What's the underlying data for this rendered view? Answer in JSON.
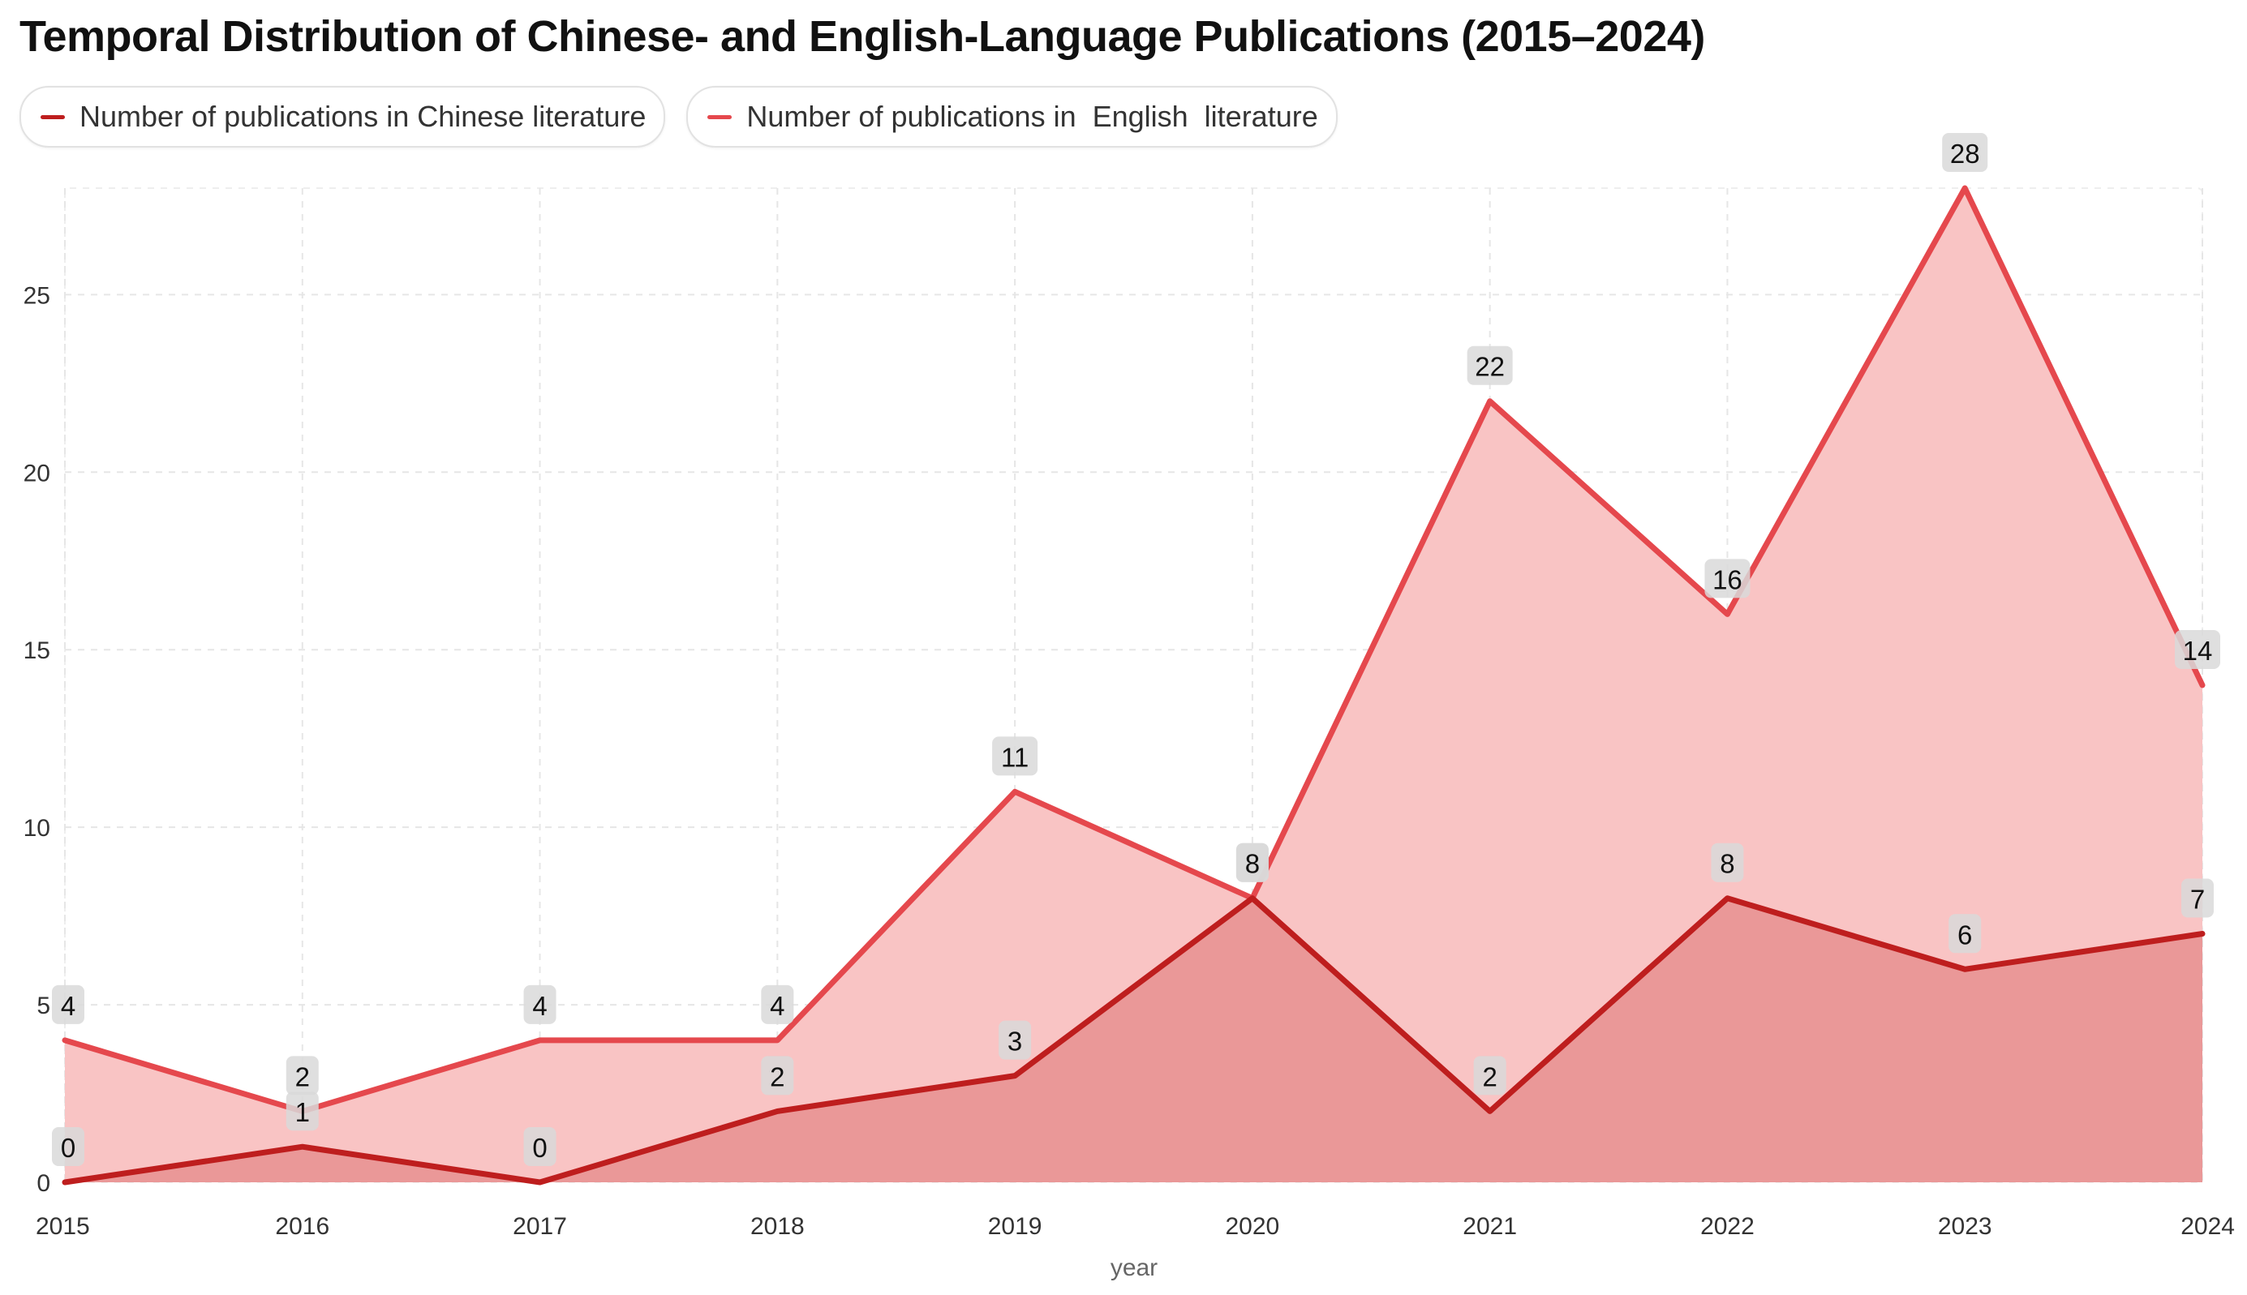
{
  "chart_data": {
    "type": "area",
    "title": "Temporal Distribution of Chinese- and English-Language Publications (2015–2024)",
    "xlabel": "year",
    "ylabel": "",
    "x": [
      "2015",
      "2016",
      "2017",
      "2018",
      "2019",
      "2020",
      "2021",
      "2022",
      "2023",
      "2024"
    ],
    "ylim": [
      0,
      28
    ],
    "yticks": [
      0,
      5,
      10,
      15,
      20,
      25
    ],
    "grid": true,
    "legend_position": "top-left",
    "series": [
      {
        "name": "Number of publications in English  literature",
        "values": [
          4,
          2,
          4,
          4,
          11,
          8,
          22,
          16,
          28,
          14
        ],
        "line_color": "#e5484d",
        "fill_color": "#f9c4c4"
      },
      {
        "name": "Number of publications in Chinese literature",
        "values": [
          0,
          1,
          0,
          2,
          3,
          8,
          2,
          8,
          6,
          7
        ],
        "line_color": "#be1e1e",
        "fill_color": "#e89090"
      }
    ]
  },
  "legend": [
    {
      "label": "Number of publications in Chinese literature",
      "color": "#be1e1e"
    },
    {
      "label": "Number of publications in  English  literature",
      "color": "#e5484d"
    }
  ]
}
